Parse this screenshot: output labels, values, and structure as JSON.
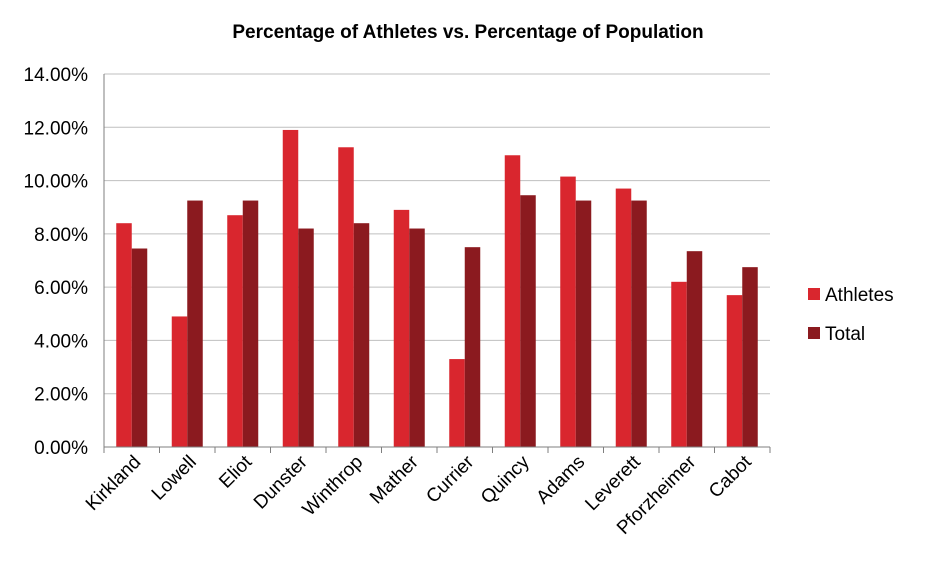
{
  "chart_data": {
    "type": "bar",
    "title": "Percentage of Athletes vs. Percentage of Population",
    "categories": [
      "Kirkland",
      "Lowell",
      "Eliot",
      "Dunster",
      "Winthrop",
      "Mather",
      "Currier",
      "Quincy",
      "Adams",
      "Leverett",
      "Pforzheimer",
      "Cabot"
    ],
    "series": [
      {
        "name": "Athletes",
        "color": "#d9262e",
        "values": [
          8.4,
          4.9,
          8.7,
          11.9,
          11.25,
          8.9,
          3.3,
          10.95,
          10.15,
          9.7,
          6.2,
          5.7
        ]
      },
      {
        "name": "Total",
        "color": "#8b1a1f",
        "values": [
          7.45,
          9.25,
          9.25,
          8.2,
          8.4,
          8.2,
          7.5,
          9.45,
          9.25,
          9.25,
          7.35,
          6.75
        ]
      }
    ],
    "ylim": [
      0,
      14
    ],
    "yticks": [
      "0.00%",
      "2.00%",
      "4.00%",
      "6.00%",
      "8.00%",
      "10.00%",
      "12.00%",
      "14.00%"
    ],
    "grid": true,
    "legend": "right",
    "xlabel": "",
    "ylabel": ""
  }
}
